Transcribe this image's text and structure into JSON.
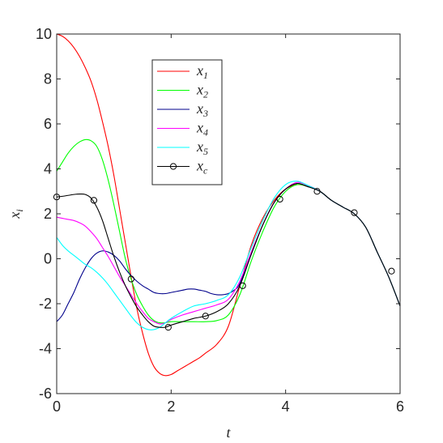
{
  "chart_data": {
    "type": "line",
    "xlabel": "t",
    "ylabel": "x_i",
    "xlim": [
      0,
      6
    ],
    "ylim": [
      -6,
      10
    ],
    "xticks": [
      0,
      2,
      4,
      6
    ],
    "yticks": [
      -6,
      -4,
      -2,
      0,
      2,
      4,
      6,
      8,
      10
    ],
    "grid": false,
    "legend_position": "upper-left-center",
    "series": [
      {
        "name": "x1",
        "label_base": "x",
        "label_sub": "1",
        "color": "#ff0000",
        "x": [
          0,
          0.1,
          0.2,
          0.3,
          0.4,
          0.5,
          0.6,
          0.7,
          0.8,
          0.9,
          1.0,
          1.1,
          1.2,
          1.3,
          1.4,
          1.5,
          1.6,
          1.7,
          1.8,
          1.9,
          2.0,
          2.1,
          2.2,
          2.3,
          2.4,
          2.5,
          2.6,
          2.8,
          3.0,
          3.2,
          3.4,
          3.6,
          3.8,
          4.0,
          4.2,
          4.4,
          4.6,
          4.8,
          5.0,
          5.2,
          5.4,
          5.6,
          5.8,
          6.0
        ],
        "y": [
          10.0,
          9.9,
          9.7,
          9.4,
          9.0,
          8.5,
          7.9,
          7.1,
          6.1,
          5.0,
          3.7,
          2.2,
          0.7,
          -0.8,
          -2.2,
          -3.3,
          -4.2,
          -4.8,
          -5.1,
          -5.2,
          -5.15,
          -5.0,
          -4.85,
          -4.7,
          -4.55,
          -4.4,
          -4.2,
          -3.8,
          -3.0,
          -1.2,
          0.6,
          1.8,
          2.6,
          3.1,
          3.3,
          3.2,
          3.0,
          2.6,
          2.3,
          2.0,
          1.4,
          0.3,
          -0.8,
          -2.1
        ]
      },
      {
        "name": "x2",
        "label_base": "x",
        "label_sub": "2",
        "color": "#00ff00",
        "x": [
          0,
          0.1,
          0.2,
          0.3,
          0.4,
          0.5,
          0.6,
          0.7,
          0.8,
          0.9,
          1.0,
          1.1,
          1.2,
          1.3,
          1.4,
          1.5,
          1.6,
          1.7,
          1.8,
          1.9,
          2.0,
          2.2,
          2.4,
          2.6,
          2.8,
          3.0,
          3.2,
          3.4,
          3.6,
          3.8,
          4.0,
          4.2,
          4.4,
          4.6,
          4.8,
          5.0,
          5.2,
          5.4,
          5.6,
          5.8,
          6.0
        ],
        "y": [
          3.9,
          4.3,
          4.7,
          5.0,
          5.2,
          5.3,
          5.25,
          5.0,
          4.4,
          3.5,
          2.4,
          1.2,
          0.0,
          -0.9,
          -1.6,
          -2.1,
          -2.5,
          -2.75,
          -2.85,
          -2.85,
          -2.8,
          -2.8,
          -2.8,
          -2.8,
          -2.75,
          -2.5,
          -1.6,
          -0.1,
          1.2,
          2.3,
          3.0,
          3.3,
          3.2,
          3.0,
          2.6,
          2.3,
          2.0,
          1.4,
          0.3,
          -0.8,
          -2.1
        ]
      },
      {
        "name": "x3",
        "label_base": "x",
        "label_sub": "3",
        "color": "#00008b",
        "x": [
          0,
          0.1,
          0.2,
          0.3,
          0.4,
          0.5,
          0.6,
          0.7,
          0.8,
          0.9,
          1.0,
          1.1,
          1.2,
          1.3,
          1.4,
          1.5,
          1.6,
          1.7,
          1.8,
          1.9,
          2.0,
          2.1,
          2.2,
          2.3,
          2.4,
          2.5,
          2.6,
          2.7,
          2.8,
          2.9,
          3.0,
          3.1,
          3.2,
          3.4,
          3.6,
          3.8,
          4.0,
          4.2,
          4.4,
          4.6,
          4.8,
          5.0,
          5.2,
          5.4,
          5.6,
          5.8,
          6.0
        ],
        "y": [
          -2.8,
          -2.5,
          -2.0,
          -1.5,
          -0.9,
          -0.4,
          0.0,
          0.25,
          0.35,
          0.3,
          0.15,
          -0.1,
          -0.45,
          -0.75,
          -1.0,
          -1.2,
          -1.35,
          -1.5,
          -1.55,
          -1.55,
          -1.5,
          -1.45,
          -1.4,
          -1.35,
          -1.35,
          -1.4,
          -1.45,
          -1.55,
          -1.6,
          -1.6,
          -1.55,
          -1.4,
          -1.1,
          0.2,
          1.5,
          2.5,
          3.1,
          3.35,
          3.2,
          3.0,
          2.6,
          2.3,
          2.0,
          1.4,
          0.3,
          -0.8,
          -2.1
        ]
      },
      {
        "name": "x4",
        "label_base": "x",
        "label_sub": "4",
        "color": "#ff00ff",
        "x": [
          0,
          0.1,
          0.2,
          0.3,
          0.4,
          0.5,
          0.6,
          0.7,
          0.8,
          0.9,
          1.0,
          1.1,
          1.2,
          1.3,
          1.4,
          1.5,
          1.6,
          1.7,
          1.8,
          1.9,
          2.0,
          2.2,
          2.4,
          2.6,
          2.8,
          3.0,
          3.2,
          3.4,
          3.6,
          3.8,
          4.0,
          4.2,
          4.4,
          4.6,
          4.8,
          5.0,
          5.2,
          5.4,
          5.6,
          5.8,
          6.0
        ],
        "y": [
          1.85,
          1.8,
          1.75,
          1.7,
          1.6,
          1.45,
          1.2,
          0.9,
          0.5,
          0.1,
          -0.35,
          -0.8,
          -1.2,
          -1.6,
          -2.0,
          -2.35,
          -2.65,
          -2.8,
          -2.9,
          -2.85,
          -2.7,
          -2.5,
          -2.35,
          -2.2,
          -2.05,
          -1.8,
          -1.0,
          0.3,
          1.5,
          2.5,
          3.1,
          3.4,
          3.25,
          3.0,
          2.6,
          2.3,
          2.0,
          1.4,
          0.3,
          -0.8,
          -2.1
        ]
      },
      {
        "name": "x5",
        "label_base": "x",
        "label_sub": "5",
        "color": "#00ffff",
        "x": [
          0,
          0.1,
          0.2,
          0.3,
          0.4,
          0.5,
          0.6,
          0.7,
          0.8,
          0.9,
          1.0,
          1.1,
          1.2,
          1.3,
          1.4,
          1.5,
          1.6,
          1.7,
          1.8,
          1.9,
          2.0,
          2.2,
          2.4,
          2.6,
          2.8,
          3.0,
          3.2,
          3.4,
          3.6,
          3.8,
          4.0,
          4.2,
          4.4,
          4.6,
          4.8,
          5.0,
          5.2,
          5.4,
          5.6,
          5.8,
          6.0
        ],
        "y": [
          0.95,
          0.6,
          0.35,
          0.15,
          -0.05,
          -0.25,
          -0.4,
          -0.6,
          -0.85,
          -1.15,
          -1.5,
          -1.85,
          -2.2,
          -2.55,
          -2.85,
          -3.05,
          -3.15,
          -3.15,
          -3.05,
          -2.85,
          -2.65,
          -2.35,
          -2.1,
          -2.0,
          -1.85,
          -1.6,
          -0.8,
          0.5,
          1.7,
          2.7,
          3.3,
          3.45,
          3.25,
          3.0,
          2.6,
          2.3,
          2.0,
          1.4,
          0.3,
          -0.8,
          -2.1
        ]
      },
      {
        "name": "xc",
        "label_base": "x",
        "label_sub": "c",
        "color": "#000000",
        "marker": "circle",
        "x": [
          0,
          0.1,
          0.2,
          0.3,
          0.4,
          0.5,
          0.6,
          0.7,
          0.8,
          0.9,
          1.0,
          1.1,
          1.2,
          1.3,
          1.4,
          1.5,
          1.6,
          1.7,
          1.8,
          1.9,
          2.0,
          2.2,
          2.4,
          2.6,
          2.8,
          3.0,
          3.2,
          3.4,
          3.6,
          3.8,
          4.0,
          4.2,
          4.4,
          4.6,
          4.8,
          5.0,
          5.2,
          5.4,
          5.6,
          5.8,
          6.0
        ],
        "y": [
          2.75,
          2.78,
          2.82,
          2.86,
          2.88,
          2.86,
          2.7,
          2.3,
          1.7,
          0.9,
          0.1,
          -0.6,
          -1.2,
          -1.7,
          -2.15,
          -2.5,
          -2.8,
          -3.0,
          -3.05,
          -3.05,
          -2.95,
          -2.8,
          -2.65,
          -2.55,
          -2.35,
          -2.0,
          -1.2,
          0.2,
          1.5,
          2.5,
          3.1,
          3.35,
          3.2,
          3.0,
          2.6,
          2.3,
          2.0,
          1.4,
          0.3,
          -0.8,
          -2.1
        ],
        "markers_x": [
          0,
          0.65,
          1.3,
          1.95,
          2.6,
          3.25,
          3.9,
          4.55,
          5.2,
          5.85
        ],
        "markers_y": [
          2.75,
          2.6,
          -0.9,
          -3.05,
          -2.55,
          -1.2,
          2.65,
          3.0,
          2.05,
          -0.55
        ]
      }
    ]
  }
}
